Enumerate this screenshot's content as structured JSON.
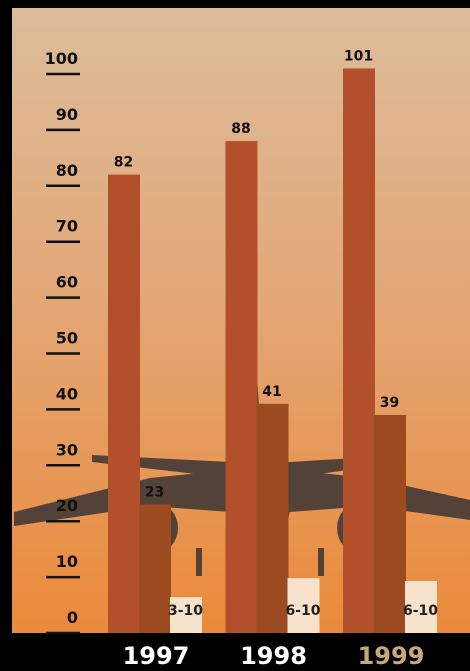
{
  "chart_data": {
    "type": "bar",
    "categories": [
      "1997",
      "1998",
      "1999"
    ],
    "category_label_colors": [
      "#ffffff",
      "#ffffff",
      "#c9a77a"
    ],
    "series": [
      {
        "color": "#b2502c",
        "values": [
          82,
          88,
          101
        ]
      },
      {
        "color": "#9c4a20",
        "values": [
          23,
          41,
          39
        ]
      },
      {
        "color": "#f7e3cc",
        "values": [
          6.4,
          9.8,
          9.3
        ],
        "value_labels": [
          "3-10",
          "6-10",
          "6-10"
        ]
      }
    ],
    "ylim": [
      0,
      100
    ],
    "yticks": [
      0,
      10,
      20,
      30,
      40,
      50,
      60,
      70,
      80,
      90,
      100
    ]
  }
}
